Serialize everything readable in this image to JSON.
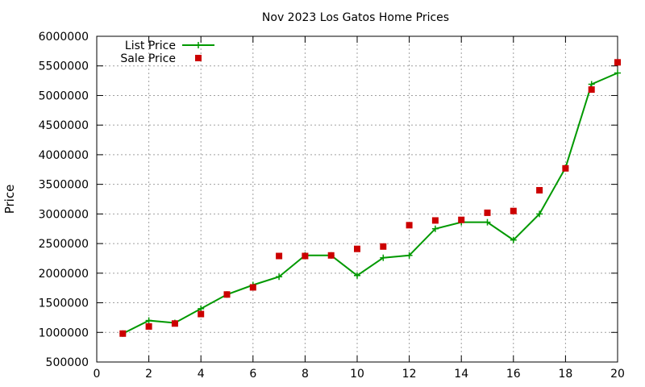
{
  "chart_data": {
    "type": "line",
    "title": "Nov 2023 Los Gatos Home Prices",
    "xlabel": "",
    "ylabel": "Price",
    "xlim": [
      0,
      20
    ],
    "ylim": [
      500000,
      6000000
    ],
    "x_ticks": [
      0,
      2,
      4,
      6,
      8,
      10,
      12,
      14,
      16,
      18,
      20
    ],
    "y_ticks": [
      500000,
      1000000,
      1500000,
      2000000,
      2500000,
      3000000,
      3500000,
      4000000,
      4500000,
      5000000,
      5500000,
      6000000
    ],
    "grid": true,
    "legend_position": "top-left",
    "series": [
      {
        "name": "List Price",
        "style": "line-with-plus-markers",
        "color": "#009900",
        "x": [
          1,
          2,
          3,
          4,
          5,
          6,
          7,
          8,
          9,
          10,
          11,
          12,
          13,
          14,
          15,
          16,
          17,
          18,
          19,
          20
        ],
        "values": [
          980000,
          1200000,
          1160000,
          1400000,
          1640000,
          1800000,
          1940000,
          2300000,
          2300000,
          1960000,
          2260000,
          2300000,
          2750000,
          2860000,
          2860000,
          2560000,
          3000000,
          3780000,
          5190000,
          5380000
        ]
      },
      {
        "name": "Sale Price",
        "style": "square-markers",
        "color": "#cc0000",
        "x": [
          1,
          2,
          3,
          4,
          5,
          6,
          7,
          8,
          9,
          10,
          11,
          12,
          13,
          14,
          15,
          16,
          17,
          18,
          19,
          20
        ],
        "values": [
          980000,
          1100000,
          1150000,
          1310000,
          1640000,
          1760000,
          2290000,
          2290000,
          2300000,
          2410000,
          2450000,
          2810000,
          2890000,
          2900000,
          3020000,
          3050000,
          3400000,
          3770000,
          5100000,
          5560000
        ]
      }
    ]
  }
}
